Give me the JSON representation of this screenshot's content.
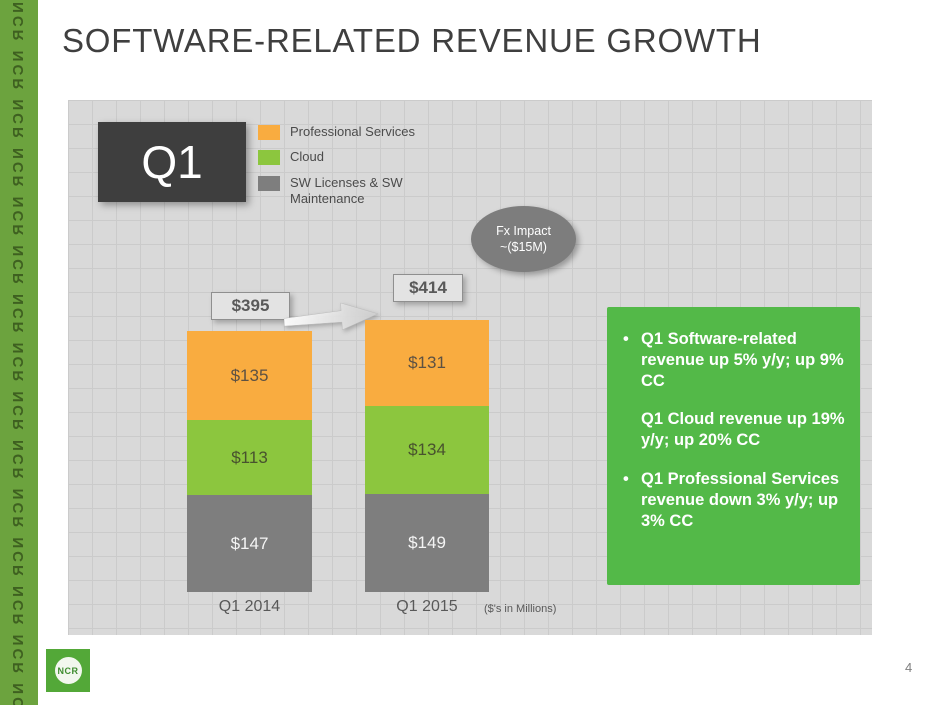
{
  "slide": {
    "title": "SOFTWARE-RELATED REVENUE GROWTH",
    "quarter_label": "Q1",
    "footnote": "($'s in Millions)"
  },
  "legend": [
    {
      "label": "Professional Services",
      "color": "#F9AC40"
    },
    {
      "label": "Cloud",
      "color": "#8CC63E"
    },
    {
      "label": "SW Licenses & SW Maintenance",
      "color": "#7E7E7E"
    }
  ],
  "fx_note": {
    "line1": "Fx Impact",
    "line2": "~($15M)"
  },
  "chart_data": {
    "type": "bar",
    "stacked": true,
    "categories": [
      "Q1 2014",
      "Q1 2015"
    ],
    "series": [
      {
        "name": "Professional Services",
        "color": "#F9AC40",
        "values": [
          135,
          131
        ]
      },
      {
        "name": "Cloud",
        "color": "#8CC63E",
        "values": [
          113,
          134
        ]
      },
      {
        "name": "SW Licenses & SW Maintenance",
        "color": "#7E7E7E",
        "values": [
          147,
          149
        ]
      }
    ],
    "totals": [
      395,
      414
    ],
    "total_labels": [
      "$395",
      "$414"
    ],
    "value_labels": [
      [
        "$135",
        "$113",
        "$147"
      ],
      [
        "$131",
        "$134",
        "$149"
      ]
    ],
    "units_note": "($'s in Millions)",
    "legend_position": "top-left",
    "xlabel": "",
    "ylabel": ""
  },
  "callout": {
    "background": "#53B948",
    "items": [
      {
        "marker": "•",
        "text": "Q1 Software-related revenue up 5% y/y; up 9% CC"
      },
      {
        "marker": "",
        "text": "Q1 Cloud revenue up 19% y/y; up 20% CC"
      },
      {
        "marker": "•",
        "text": "Q1 Professional Services revenue down 3% y/y; up 3% CC"
      }
    ]
  },
  "footer": {
    "logo_text": "NCR",
    "page_number": "4"
  },
  "decor": {
    "strip_text": "NCR"
  }
}
